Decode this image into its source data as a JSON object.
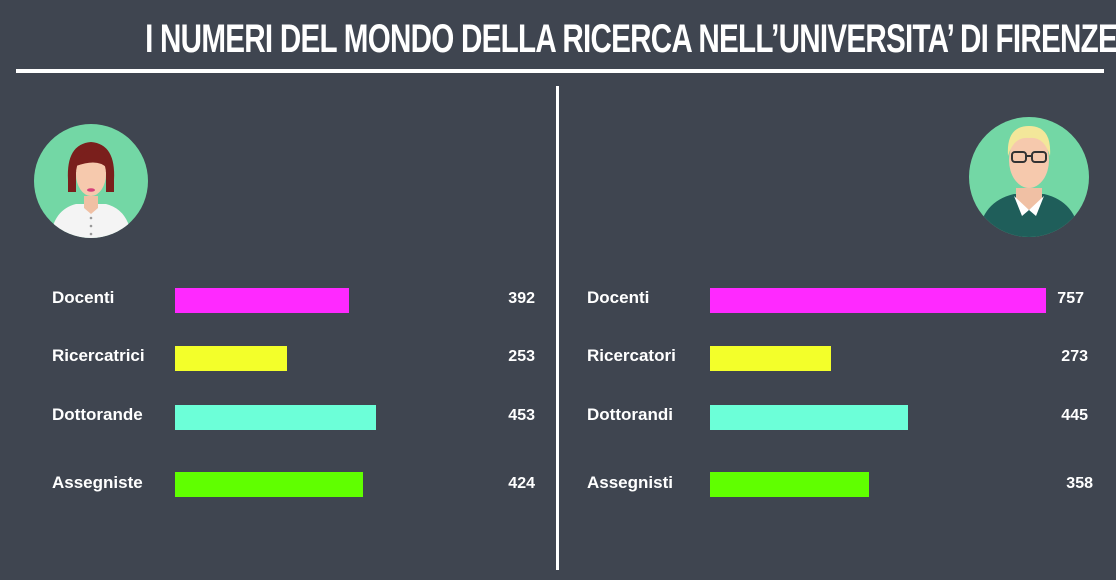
{
  "title": "I NUMERI DEL MONDO DELLA RICERCA NELL’UNIVERSITA’ DI FIRENZE",
  "colors": {
    "background": "#3f4550",
    "docenti": "#ff29ff",
    "ricerca": "#f3ff2a",
    "dottorandi": "#6cffd8",
    "assegnisti": "#60ff00"
  },
  "icons": {
    "left": "woman-avatar-icon",
    "right": "man-avatar-icon"
  },
  "chart_data": [
    {
      "type": "bar",
      "orientation": "horizontal",
      "group": "female",
      "categories": [
        "Docenti",
        "Ricercatrici",
        "Dottorande",
        "Assegniste"
      ],
      "values": [
        392,
        253,
        453,
        424
      ],
      "value_labels": [
        "392",
        "253",
        "453",
        "424"
      ],
      "colors": [
        "#ff29ff",
        "#f3ff2a",
        "#6cffd8",
        "#60ff00"
      ]
    },
    {
      "type": "bar",
      "orientation": "horizontal",
      "group": "male",
      "categories": [
        "Docenti",
        "Ricercatori",
        "Dottorandi",
        "Assegnisti"
      ],
      "values": [
        757,
        273,
        445,
        358
      ],
      "value_labels": [
        "757",
        "273",
        "445",
        "358"
      ],
      "colors": [
        "#ff29ff",
        "#f3ff2a",
        "#6cffd8",
        "#60ff00"
      ]
    }
  ]
}
